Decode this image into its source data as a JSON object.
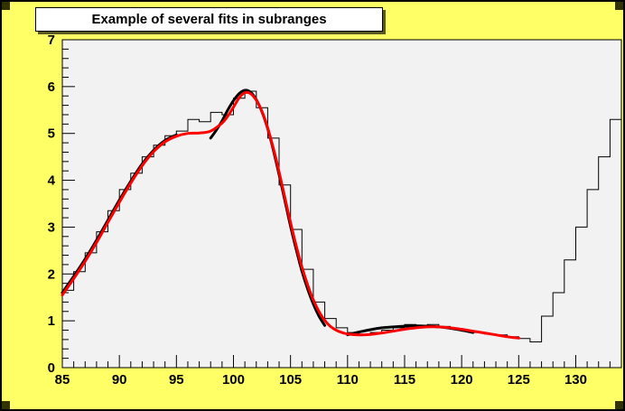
{
  "title": "Example of several fits in subranges",
  "chart_data": {
    "type": "line",
    "title": "Example of several fits in subranges",
    "xlabel": "",
    "ylabel": "",
    "x_range": [
      85,
      134
    ],
    "y_range": [
      0,
      7
    ],
    "x_ticks": [
      85,
      90,
      95,
      100,
      105,
      110,
      115,
      120,
      125,
      130
    ],
    "x_minor_step": 1,
    "y_ticks": [
      0,
      1,
      2,
      3,
      4,
      5,
      6,
      7
    ],
    "y_minor_step": 0.2,
    "grid": false,
    "legend": "none",
    "histogram": {
      "name": "data-histogram",
      "bin_start": 85,
      "bin_width": 1,
      "color": "#000000",
      "values": [
        1.65,
        2.05,
        2.45,
        2.9,
        3.35,
        3.8,
        4.15,
        4.5,
        4.75,
        4.95,
        5.05,
        5.3,
        5.25,
        5.45,
        5.4,
        5.75,
        5.9,
        5.55,
        4.9,
        3.9,
        2.95,
        2.1,
        1.4,
        1.05,
        0.85,
        0.75,
        0.7,
        0.75,
        0.8,
        0.85,
        0.92,
        0.9,
        0.92,
        0.88,
        0.82,
        0.78,
        0.75,
        0.72,
        0.7,
        0.66,
        0.62,
        0.55,
        1.1,
        1.6,
        2.3,
        3.0,
        3.8,
        4.5,
        5.3
      ]
    },
    "fits": [
      {
        "name": "fit-g1-black-range-85-95",
        "color": "#000000",
        "width": 3,
        "points": [
          [
            85,
            1.6
          ],
          [
            86,
            1.95
          ],
          [
            87,
            2.32
          ],
          [
            88,
            2.72
          ],
          [
            89,
            3.15
          ],
          [
            90,
            3.58
          ],
          [
            91,
            3.98
          ],
          [
            92,
            4.35
          ],
          [
            93,
            4.64
          ],
          [
            94,
            4.85
          ],
          [
            95,
            4.97
          ]
        ]
      },
      {
        "name": "fit-g2-black-range-98-108",
        "color": "#000000",
        "width": 3,
        "points": [
          [
            98,
            4.9
          ],
          [
            98.5,
            5.07
          ],
          [
            99,
            5.27
          ],
          [
            99.5,
            5.5
          ],
          [
            100,
            5.7
          ],
          [
            100.5,
            5.85
          ],
          [
            101,
            5.92
          ],
          [
            101.5,
            5.88
          ],
          [
            102,
            5.72
          ],
          [
            102.5,
            5.46
          ],
          [
            103,
            5.1
          ],
          [
            103.5,
            4.64
          ],
          [
            104,
            4.12
          ],
          [
            104.5,
            3.58
          ],
          [
            105,
            3.02
          ],
          [
            105.5,
            2.52
          ],
          [
            106,
            2.06
          ],
          [
            106.5,
            1.68
          ],
          [
            107,
            1.36
          ],
          [
            107.5,
            1.1
          ],
          [
            108,
            0.9
          ]
        ]
      },
      {
        "name": "fit-g3-black-range-110-121",
        "color": "#000000",
        "width": 3,
        "points": [
          [
            110,
            0.7
          ],
          [
            111,
            0.76
          ],
          [
            112,
            0.81
          ],
          [
            113,
            0.85
          ],
          [
            114,
            0.87
          ],
          [
            115,
            0.885
          ],
          [
            116,
            0.89
          ],
          [
            117,
            0.885
          ],
          [
            118,
            0.87
          ],
          [
            119,
            0.84
          ],
          [
            120,
            0.8
          ],
          [
            121,
            0.75
          ]
        ]
      },
      {
        "name": "fit-total-red-range-85-125",
        "color": "#ff0000",
        "width": 3,
        "points": [
          [
            85,
            1.55
          ],
          [
            86,
            1.9
          ],
          [
            87,
            2.27
          ],
          [
            88,
            2.67
          ],
          [
            89,
            3.1
          ],
          [
            90,
            3.53
          ],
          [
            91,
            3.94
          ],
          [
            92,
            4.31
          ],
          [
            93,
            4.61
          ],
          [
            94,
            4.82
          ],
          [
            95,
            4.94
          ],
          [
            96,
            5.0
          ],
          [
            97,
            5.01
          ],
          [
            98,
            5.05
          ],
          [
            99,
            5.22
          ],
          [
            99.5,
            5.37
          ],
          [
            100,
            5.56
          ],
          [
            100.5,
            5.76
          ],
          [
            101,
            5.87
          ],
          [
            101.5,
            5.85
          ],
          [
            102,
            5.71
          ],
          [
            102.5,
            5.47
          ],
          [
            103,
            5.12
          ],
          [
            103.5,
            4.68
          ],
          [
            104,
            4.18
          ],
          [
            104.5,
            3.64
          ],
          [
            105,
            3.1
          ],
          [
            105.5,
            2.6
          ],
          [
            106,
            2.15
          ],
          [
            106.5,
            1.77
          ],
          [
            107,
            1.45
          ],
          [
            107.5,
            1.2
          ],
          [
            108,
            1.01
          ],
          [
            108.5,
            0.88
          ],
          [
            109,
            0.8
          ],
          [
            109.5,
            0.75
          ],
          [
            110,
            0.72
          ],
          [
            111,
            0.7
          ],
          [
            112,
            0.71
          ],
          [
            113,
            0.74
          ],
          [
            114,
            0.78
          ],
          [
            115,
            0.82
          ],
          [
            116,
            0.85
          ],
          [
            117,
            0.87
          ],
          [
            118,
            0.87
          ],
          [
            119,
            0.85
          ],
          [
            120,
            0.82
          ],
          [
            121,
            0.78
          ],
          [
            122,
            0.74
          ],
          [
            123,
            0.7
          ],
          [
            124,
            0.66
          ],
          [
            125,
            0.63
          ]
        ]
      }
    ],
    "colors": {
      "canvas_background": "#ffff66",
      "frame_background": "#f2f2f2",
      "axis": "#000000",
      "histogram": "#000000",
      "subrange_fits": "#000000",
      "total_fit": "#ff0000",
      "corner_handles": "#333300"
    }
  }
}
